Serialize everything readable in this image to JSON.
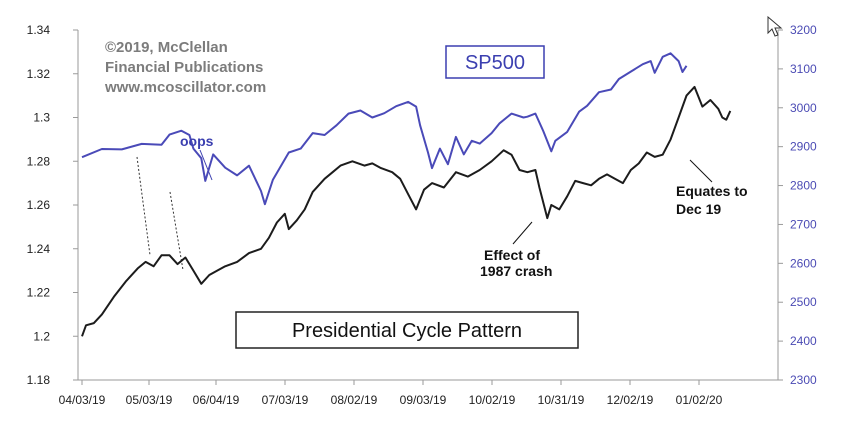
{
  "chart_data": {
    "type": "line",
    "credit_lines": [
      "©2019, McClellan",
      "Financial Publications",
      "www.mcoscillator.com"
    ],
    "x_labels": [
      "04/03/19",
      "05/03/19",
      "06/04/19",
      "07/03/19",
      "08/02/19",
      "09/03/19",
      "10/02/19",
      "10/31/19",
      "12/02/19",
      "01/02/20"
    ],
    "y_left": {
      "ticks": [
        "1.18",
        "1.2",
        "1.22",
        "1.24",
        "1.26",
        "1.28",
        "1.3",
        "1.32",
        "1.34"
      ],
      "ylim": [
        1.18,
        1.34
      ]
    },
    "y_right": {
      "ticks": [
        "2300",
        "2400",
        "2500",
        "2600",
        "2700",
        "2800",
        "2900",
        "3000",
        "3100",
        "3200"
      ],
      "ylim": [
        2300,
        3200
      ]
    },
    "series": [
      {
        "name": "SP500",
        "axis": "right",
        "color": "#4a4ab8",
        "points": [
          [
            0,
            2873
          ],
          [
            5,
            2894
          ],
          [
            10,
            2893
          ],
          [
            15,
            2907
          ],
          [
            20,
            2905
          ],
          [
            22,
            2931
          ],
          [
            25,
            2941
          ],
          [
            27,
            2930
          ],
          [
            28,
            2895
          ],
          [
            30,
            2870
          ],
          [
            31,
            2812
          ],
          [
            33,
            2880
          ],
          [
            36,
            2846
          ],
          [
            39,
            2826
          ],
          [
            42,
            2851
          ],
          [
            45,
            2786
          ],
          [
            46,
            2752
          ],
          [
            48,
            2815
          ],
          [
            52,
            2885
          ],
          [
            55,
            2895
          ],
          [
            58,
            2935
          ],
          [
            61,
            2930
          ],
          [
            64,
            2955
          ],
          [
            67,
            2985
          ],
          [
            70,
            2993
          ],
          [
            73,
            2975
          ],
          [
            76,
            2986
          ],
          [
            79,
            3004
          ],
          [
            82,
            3015
          ],
          [
            84,
            3003
          ],
          [
            85,
            2955
          ],
          [
            87,
            2885
          ],
          [
            88,
            2845
          ],
          [
            90,
            2895
          ],
          [
            92,
            2855
          ],
          [
            94,
            2925
          ],
          [
            96,
            2880
          ],
          [
            98,
            2915
          ],
          [
            100,
            2908
          ],
          [
            103,
            2935
          ],
          [
            105,
            2960
          ],
          [
            108,
            2985
          ],
          [
            111,
            2975
          ],
          [
            112,
            2977
          ],
          [
            114,
            2985
          ],
          [
            116,
            2940
          ],
          [
            118,
            2888
          ],
          [
            119,
            2915
          ],
          [
            122,
            2938
          ],
          [
            125,
            2990
          ],
          [
            127,
            3005
          ],
          [
            130,
            3040
          ],
          [
            133,
            3047
          ],
          [
            135,
            3074
          ],
          [
            138,
            3093
          ],
          [
            141,
            3112
          ],
          [
            143,
            3120
          ],
          [
            144,
            3090
          ],
          [
            146,
            3131
          ],
          [
            148,
            3140
          ],
          [
            150,
            3120
          ],
          [
            151,
            3092
          ],
          [
            152,
            3108
          ]
        ]
      },
      {
        "name": "Presidential Cycle Pattern",
        "axis": "left",
        "color": "#1c1c1c",
        "points": [
          [
            0,
            1.2
          ],
          [
            1,
            1.205
          ],
          [
            3,
            1.206
          ],
          [
            5,
            1.21
          ],
          [
            8,
            1.218
          ],
          [
            11,
            1.225
          ],
          [
            14,
            1.231
          ],
          [
            16,
            1.234
          ],
          [
            18,
            1.232
          ],
          [
            20,
            1.237
          ],
          [
            22,
            1.237
          ],
          [
            24,
            1.233
          ],
          [
            26,
            1.236
          ],
          [
            28,
            1.23
          ],
          [
            30,
            1.224
          ],
          [
            32,
            1.228
          ],
          [
            34,
            1.23
          ],
          [
            36,
            1.232
          ],
          [
            39,
            1.234
          ],
          [
            42,
            1.238
          ],
          [
            45,
            1.24
          ],
          [
            47,
            1.245
          ],
          [
            49,
            1.252
          ],
          [
            51,
            1.256
          ],
          [
            52,
            1.249
          ],
          [
            54,
            1.253
          ],
          [
            56,
            1.258
          ],
          [
            58,
            1.266
          ],
          [
            61,
            1.272
          ],
          [
            63,
            1.275
          ],
          [
            65,
            1.278
          ],
          [
            68,
            1.28
          ],
          [
            71,
            1.278
          ],
          [
            73,
            1.279
          ],
          [
            75,
            1.277
          ],
          [
            78,
            1.275
          ],
          [
            80,
            1.272
          ],
          [
            82,
            1.265
          ],
          [
            84,
            1.258
          ],
          [
            86,
            1.267
          ],
          [
            88,
            1.27
          ],
          [
            91,
            1.268
          ],
          [
            94,
            1.275
          ],
          [
            97,
            1.273
          ],
          [
            100,
            1.276
          ],
          [
            103,
            1.28
          ],
          [
            106,
            1.285
          ],
          [
            108,
            1.283
          ],
          [
            110,
            1.276
          ],
          [
            112,
            1.275
          ],
          [
            114,
            1.276
          ],
          [
            115,
            1.268
          ],
          [
            117,
            1.254
          ],
          [
            118,
            1.26
          ],
          [
            120,
            1.258
          ],
          [
            122,
            1.264
          ],
          [
            124,
            1.271
          ],
          [
            126,
            1.27
          ],
          [
            128,
            1.269
          ],
          [
            130,
            1.272
          ],
          [
            132,
            1.274
          ],
          [
            134,
            1.272
          ],
          [
            136,
            1.27
          ],
          [
            138,
            1.276
          ],
          [
            140,
            1.279
          ],
          [
            142,
            1.284
          ],
          [
            144,
            1.282
          ],
          [
            146,
            1.283
          ],
          [
            148,
            1.29
          ],
          [
            150,
            1.3
          ],
          [
            152,
            1.31
          ],
          [
            154,
            1.314
          ],
          [
            156,
            1.305
          ],
          [
            158,
            1.308
          ],
          [
            160,
            1.304
          ],
          [
            161,
            1.3
          ],
          [
            162,
            1.299
          ],
          [
            163,
            1.303
          ]
        ]
      }
    ],
    "annotations": {
      "oops": "oops",
      "crash_line1": "Effect of",
      "crash_line2": "1987 crash",
      "equates_line1": "Equates to",
      "equates_line2": "Dec 19"
    },
    "grid": false,
    "legend": {
      "sp500": "SP500",
      "pattern": "Presidential Cycle Pattern"
    }
  },
  "colors": {
    "sp500": "#4a4ab8",
    "pattern": "#1c1c1c",
    "axis": "#999999"
  }
}
